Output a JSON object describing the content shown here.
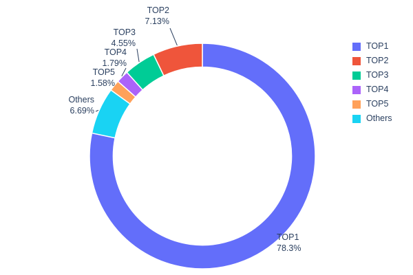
{
  "chart_data": {
    "type": "pie",
    "subtype": "donut",
    "hole": 0.79,
    "title": "",
    "labels": [
      "TOP1",
      "TOP2",
      "TOP3",
      "TOP4",
      "TOP5",
      "Others"
    ],
    "values": [
      78.3,
      7.13,
      4.55,
      1.79,
      1.58,
      6.69
    ],
    "percents": [
      "78.3%",
      "7.13%",
      "4.55%",
      "1.79%",
      "1.58%",
      "6.69%"
    ],
    "colors": [
      "#636EFA",
      "#EF553B",
      "#00CC96",
      "#AB63FA",
      "#FFA15A",
      "#19D3F3"
    ],
    "legend": {
      "position": "right",
      "entries": [
        "TOP1",
        "TOP2",
        "TOP3",
        "TOP4",
        "TOP5",
        "Others"
      ]
    },
    "layout": {
      "start_angle_deg": 90,
      "first_slice_direction": "clockwise",
      "other_slices_direction": "counterclockwise",
      "background": "#ffffff",
      "text_color": "#2a3f5f",
      "grid": false
    }
  }
}
